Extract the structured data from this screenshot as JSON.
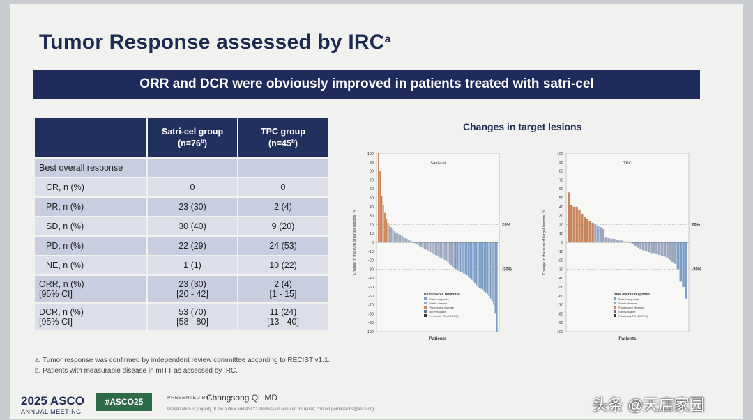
{
  "title": "Tumor Response assessed by IRC",
  "title_sup": "a",
  "banner": "ORR and DCR were obviously improved in patients treated with satri-cel",
  "table": {
    "col1": "Satri-cel group",
    "col1_n": "(n=76",
    "col1_sup": "b",
    "col1_close": ")",
    "col2": "TPC group",
    "col2_n": "(n=45",
    "col2_sup": "b",
    "col2_close": ")",
    "section": "Best overall response",
    "rows": [
      {
        "label": "CR, n (%)",
        "a": "0",
        "b": "0"
      },
      {
        "label": "PR, n (%)",
        "a": "23 (30)",
        "b": "2 (4)"
      },
      {
        "label": "SD, n (%)",
        "a": "30 (40)",
        "b": "9 (20)"
      },
      {
        "label": "PD, n (%)",
        "a": "22 (29)",
        "b": "24 (53)"
      },
      {
        "label": "NE, n (%)",
        "a": "1 (1)",
        "b": "10 (22)"
      }
    ],
    "orr": {
      "label1": "ORR, n (%)",
      "label2": "[95% CI]",
      "a1": "23 (30)",
      "a2": "[20 - 42]",
      "b1": "2 (4)",
      "b2": "[1 - 15]"
    },
    "dcr": {
      "label1": "DCR, n (%)",
      "label2": "[95% CI]",
      "a1": "53 (70)",
      "a2": "[58 - 80]",
      "b1": "11 (24)",
      "b2": "[13 - 40]"
    }
  },
  "footnotes": [
    "a.   Tumor response was confirmed by independent review committee according to RECIST v1.1.",
    "b.   Patients with measurable disease in mITT as assessed by IRC."
  ],
  "charts_title": "Changes in target lesions",
  "chart_data": [
    {
      "type": "bar",
      "title": "Satri-cel",
      "xlabel": "Patients",
      "ylabel": "Change in the sum of target lesions, %",
      "ylim": [
        -100,
        100
      ],
      "reference_lines": [
        "20%",
        "-30%"
      ],
      "legend_title": "Best overall response",
      "legend": [
        "Partial response",
        "Stable disease",
        "Progressive disease",
        "Not evaluable",
        "Previously PD (LOSTO)"
      ],
      "values": [
        100,
        80,
        52,
        42,
        33,
        26,
        22,
        19,
        17,
        15,
        13,
        11,
        10,
        9,
        8,
        7,
        6,
        5,
        4,
        3,
        2,
        1,
        0,
        -1,
        -2,
        -3,
        -4,
        -5,
        -6,
        -7,
        -8,
        -9,
        -10,
        -11,
        -12,
        -13,
        -14,
        -15,
        -16,
        -17,
        -18,
        -19,
        -20,
        -21,
        -22,
        -24,
        -26,
        -28,
        -29,
        -30,
        -31,
        -32,
        -33,
        -34,
        -35,
        -36,
        -37,
        -38,
        -40,
        -42,
        -44,
        -46,
        -48,
        -50,
        -51,
        -52,
        -53,
        -55,
        -56,
        -58,
        -60,
        -63,
        -66,
        -70,
        -80,
        -100
      ]
    },
    {
      "type": "bar",
      "title": "TPC",
      "xlabel": "Patients",
      "ylabel": "Change in the sum of target lesions, %",
      "ylim": [
        -100,
        100
      ],
      "reference_lines": [
        "20%",
        "-30%"
      ],
      "legend_title": "Best overall response",
      "legend": [
        "Partial response",
        "Stable disease",
        "Progressive disease",
        "Not evaluable",
        "Previously PD (LOSTO)"
      ],
      "values": [
        56,
        42,
        40,
        40,
        36,
        32,
        28,
        26,
        24,
        22,
        20,
        18,
        17,
        15,
        6,
        5,
        4,
        4,
        3,
        2,
        2,
        1,
        1,
        0,
        -2,
        -4,
        -6,
        -8,
        -9,
        -10,
        -11,
        -12,
        -12,
        -13,
        -14,
        -15,
        -16,
        -18,
        -20,
        -22,
        -24,
        -30,
        -44,
        -50,
        -63
      ]
    }
  ],
  "footer": {
    "asco": "2025 ASCO",
    "asco_sub": "ANNUAL MEETING",
    "hashtag": "#ASCO25",
    "presented_by": "PRESENTED BY:",
    "presenter": "Changsong Qi, MD",
    "note": "Presentation is property of the author and ASCO. Permission required for reuse; contact permissions@asco.org",
    "watermark": "头条 @天店家园"
  },
  "colors": {
    "navy": "#1f2b5b",
    "pd": "#c8845a",
    "sd": "#9aa7bf",
    "pr": "#7a9cc6",
    "green": "#2e6b49"
  }
}
